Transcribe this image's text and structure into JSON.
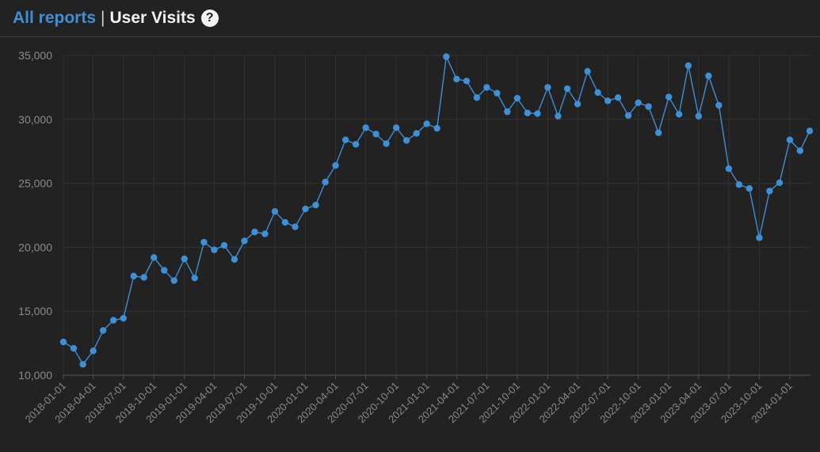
{
  "header": {
    "all_reports_label": "All reports",
    "separator": "|",
    "title": "User Visits",
    "help_icon": "question-circle-icon",
    "help_glyph": "?"
  },
  "colors": {
    "background": "#222222",
    "line": "#3d8fd6",
    "grid": "#333333",
    "text": "#8a8a8a"
  },
  "chart_data": {
    "type": "line",
    "title": "",
    "xlabel": "",
    "ylabel": "",
    "ylim": [
      10000,
      35000
    ],
    "yticks": [
      10000,
      15000,
      20000,
      25000,
      30000,
      35000
    ],
    "ytick_labels": [
      "10,000",
      "15,000",
      "20,000",
      "25,000",
      "30,000",
      "35,000"
    ],
    "xtick_labels": [
      "2018-01-01",
      "2018-04-01",
      "2018-07-01",
      "2018-10-01",
      "2019-01-01",
      "2019-04-01",
      "2019-07-01",
      "2019-10-01",
      "2020-01-01",
      "2020-04-01",
      "2020-07-01",
      "2020-10-01",
      "2021-01-01",
      "2021-04-01",
      "2021-07-01",
      "2021-10-01",
      "2022-01-01",
      "2022-04-01",
      "2022-07-01",
      "2022-10-01",
      "2023-01-01",
      "2023-04-01",
      "2023-07-01",
      "2023-10-01",
      "2024-01-01"
    ],
    "grid": true,
    "legend": "none",
    "series": [
      {
        "x": [
          "2018-01-01",
          "2018-02-01",
          "2018-03-01",
          "2018-04-01",
          "2018-05-01",
          "2018-06-01",
          "2018-07-01",
          "2018-08-01",
          "2018-09-01",
          "2018-10-01",
          "2018-11-01",
          "2018-12-01",
          "2019-01-01",
          "2019-02-01",
          "2019-03-01",
          "2019-04-01",
          "2019-05-01",
          "2019-06-01",
          "2019-07-01",
          "2019-08-01",
          "2019-09-01",
          "2019-10-01",
          "2019-11-01",
          "2019-12-01",
          "2020-01-01",
          "2020-02-01",
          "2020-03-01",
          "2020-04-01",
          "2020-05-01",
          "2020-06-01",
          "2020-07-01",
          "2020-08-01",
          "2020-09-01",
          "2020-10-01",
          "2020-11-01",
          "2020-12-01",
          "2021-01-01",
          "2021-02-01",
          "2021-03-01",
          "2021-04-01",
          "2021-05-01",
          "2021-06-01",
          "2021-07-01",
          "2021-08-01",
          "2021-09-01",
          "2021-10-01",
          "2021-11-01",
          "2021-12-01",
          "2022-01-01",
          "2022-02-01",
          "2022-03-01",
          "2022-04-01",
          "2022-05-01",
          "2022-06-01",
          "2022-07-01",
          "2022-08-01",
          "2022-09-01",
          "2022-10-01",
          "2022-11-01",
          "2022-12-01",
          "2023-01-01",
          "2023-02-01",
          "2023-03-01",
          "2023-04-01",
          "2023-05-01",
          "2023-06-01",
          "2023-07-01",
          "2023-08-01",
          "2023-09-01",
          "2023-10-01",
          "2023-11-01",
          "2023-12-01",
          "2024-01-01",
          "2024-02-01",
          "2024-03-01"
        ],
        "values": [
          12600,
          12100,
          10850,
          11900,
          13500,
          14300,
          14450,
          17750,
          17650,
          19200,
          18200,
          17400,
          19100,
          17600,
          20400,
          19800,
          20150,
          19050,
          20500,
          21200,
          21050,
          22800,
          21950,
          21600,
          23000,
          23300,
          25100,
          26400,
          28400,
          28050,
          29350,
          28850,
          28100,
          29350,
          28350,
          28900,
          29650,
          29300,
          34900,
          33150,
          33000,
          31700,
          32500,
          32050,
          30600,
          31650,
          30500,
          30450,
          32500,
          30250,
          32400,
          31200,
          33750,
          32100,
          31450,
          31700,
          30300,
          31300,
          31000,
          28950,
          31750,
          30400,
          34200,
          30250,
          33400,
          31100,
          26150,
          24900,
          24600,
          20750,
          24400,
          25050,
          28400,
          27550,
          29100
        ]
      }
    ]
  }
}
